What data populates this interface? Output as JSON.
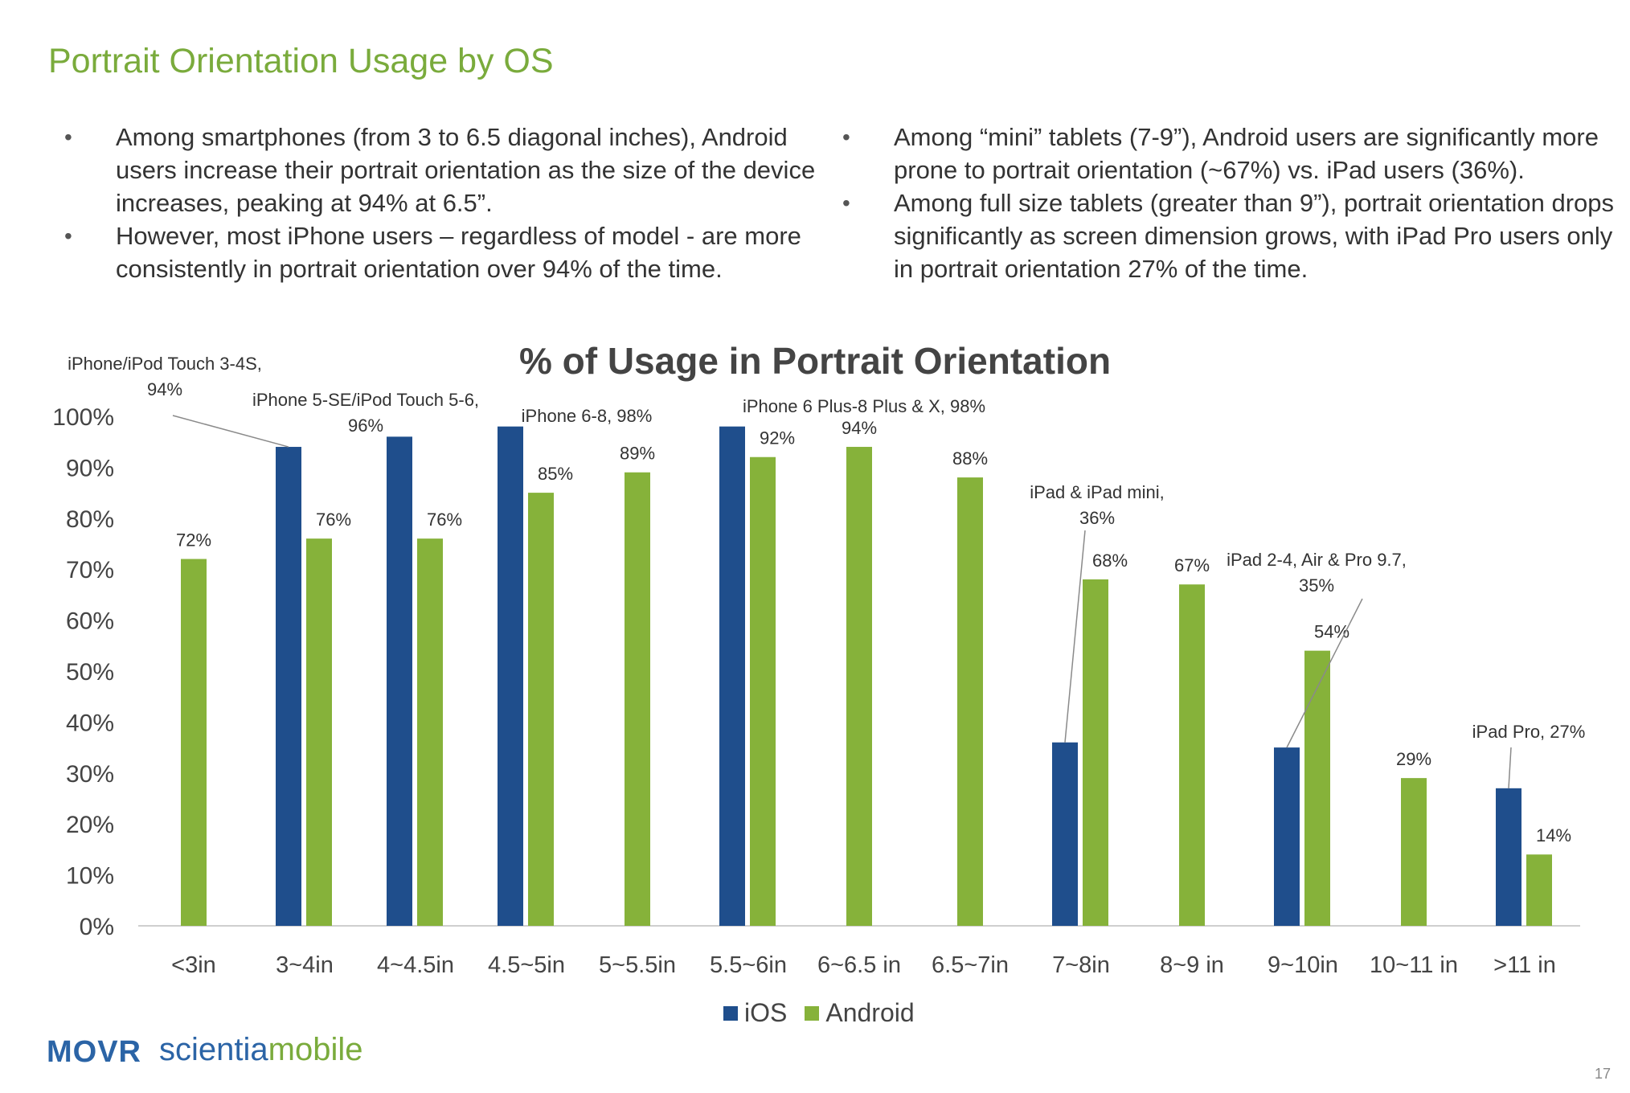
{
  "slide": {
    "title": "Portrait Orientation Usage by OS",
    "page_number": "17",
    "logo_movr": "MOVR",
    "logo_scientia": "scientia",
    "logo_mobile": "mobile"
  },
  "bullets_left": [
    "Among smartphones (from 3 to 6.5 diagonal inches), Android users increase their portrait orientation as the size of the device increases, peaking at 94% at 6.5”.",
    "However, most iPhone users – regardless of model - are more consistently in portrait orientation over 94% of the time."
  ],
  "bullets_right": [
    "Among “mini” tablets (7-9”), Android users are significantly more prone to portrait orientation (~67%) vs. iPad users (36%).",
    "Among full size tablets (greater than 9”), portrait orientation drops significantly as screen dimension grows, with iPad Pro users only in portrait orientation 27% of the time."
  ],
  "chart_data": {
    "type": "bar",
    "title": "% of Usage in Portrait Orientation",
    "categories": [
      "<3in",
      "3~4in",
      "4~4.5in",
      "4.5~5in",
      "5~5.5in",
      "5.5~6in",
      "6~6.5 in",
      "6.5~7in",
      "7~8in",
      "8~9 in",
      "9~10in",
      "10~11 in",
      ">11 in"
    ],
    "series": [
      {
        "name": "iOS",
        "color": "#1f4e8c",
        "values": [
          null,
          94,
          96,
          98,
          null,
          98,
          null,
          null,
          36,
          null,
          35,
          null,
          27
        ]
      },
      {
        "name": "Android",
        "color": "#86b23a",
        "values": [
          72,
          76,
          76,
          85,
          89,
          92,
          94,
          88,
          68,
          67,
          54,
          29,
          14
        ]
      }
    ],
    "android_labels": [
      "72%",
      "76%",
      "76%",
      "85%",
      "89%",
      "92%",
      "94%",
      "88%",
      "68%",
      "67%",
      "54%",
      "29%",
      "14%"
    ],
    "ios_callouts": [
      {
        "category_index": 1,
        "lines": [
          "iPhone/iPod Touch 3-4S,",
          "94%"
        ]
      },
      {
        "category_index": 2,
        "lines": [
          "iPhone 5-SE/iPod Touch 5-6,",
          "96%"
        ]
      },
      {
        "category_index": 3,
        "lines": [
          "iPhone 6-8, 98%"
        ]
      },
      {
        "category_index": 5,
        "lines": [
          "iPhone 6 Plus-8 Plus & X, 98%"
        ]
      },
      {
        "category_index": 8,
        "lines": [
          "iPad & iPad mini,",
          "36%"
        ]
      },
      {
        "category_index": 10,
        "lines": [
          "iPad 2-4, Air & Pro 9.7,",
          "35%"
        ]
      },
      {
        "category_index": 12,
        "lines": [
          "iPad Pro, 27%"
        ]
      }
    ],
    "y_ticks": [
      "0%",
      "10%",
      "20%",
      "30%",
      "40%",
      "50%",
      "60%",
      "70%",
      "80%",
      "90%",
      "100%"
    ],
    "ylim": [
      0,
      100
    ],
    "grid": false,
    "legend_position": "bottom"
  }
}
